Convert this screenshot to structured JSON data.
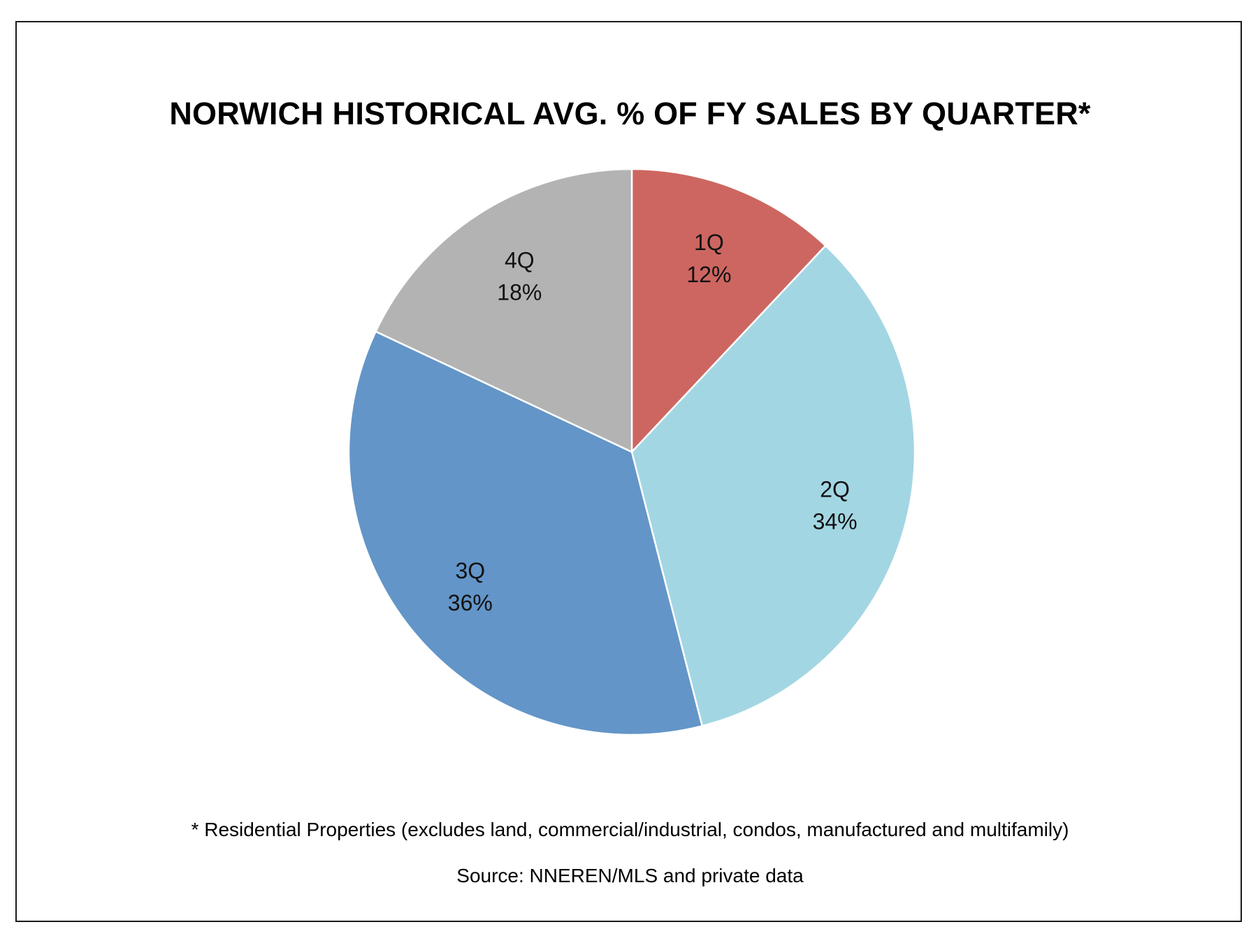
{
  "chart_data": {
    "type": "pie",
    "title": "NORWICH HISTORICAL AVG. % OF FY SALES BY QUARTER*",
    "categories": [
      "1Q",
      "2Q",
      "3Q",
      "4Q"
    ],
    "values": [
      12,
      34,
      36,
      18
    ],
    "value_labels": [
      "12%",
      "34%",
      "36%",
      "18%"
    ],
    "colors": [
      "#cd6661",
      "#a3d6e3",
      "#6395c8",
      "#b3b3b3"
    ],
    "start": "12 o'clock",
    "direction": "clockwise",
    "legend": "none",
    "footnote": "* Residential Properties (excludes land, commercial/industrial, condos, manufactured and multifamily)",
    "source": "Source: NNEREN/MLS and private data"
  }
}
